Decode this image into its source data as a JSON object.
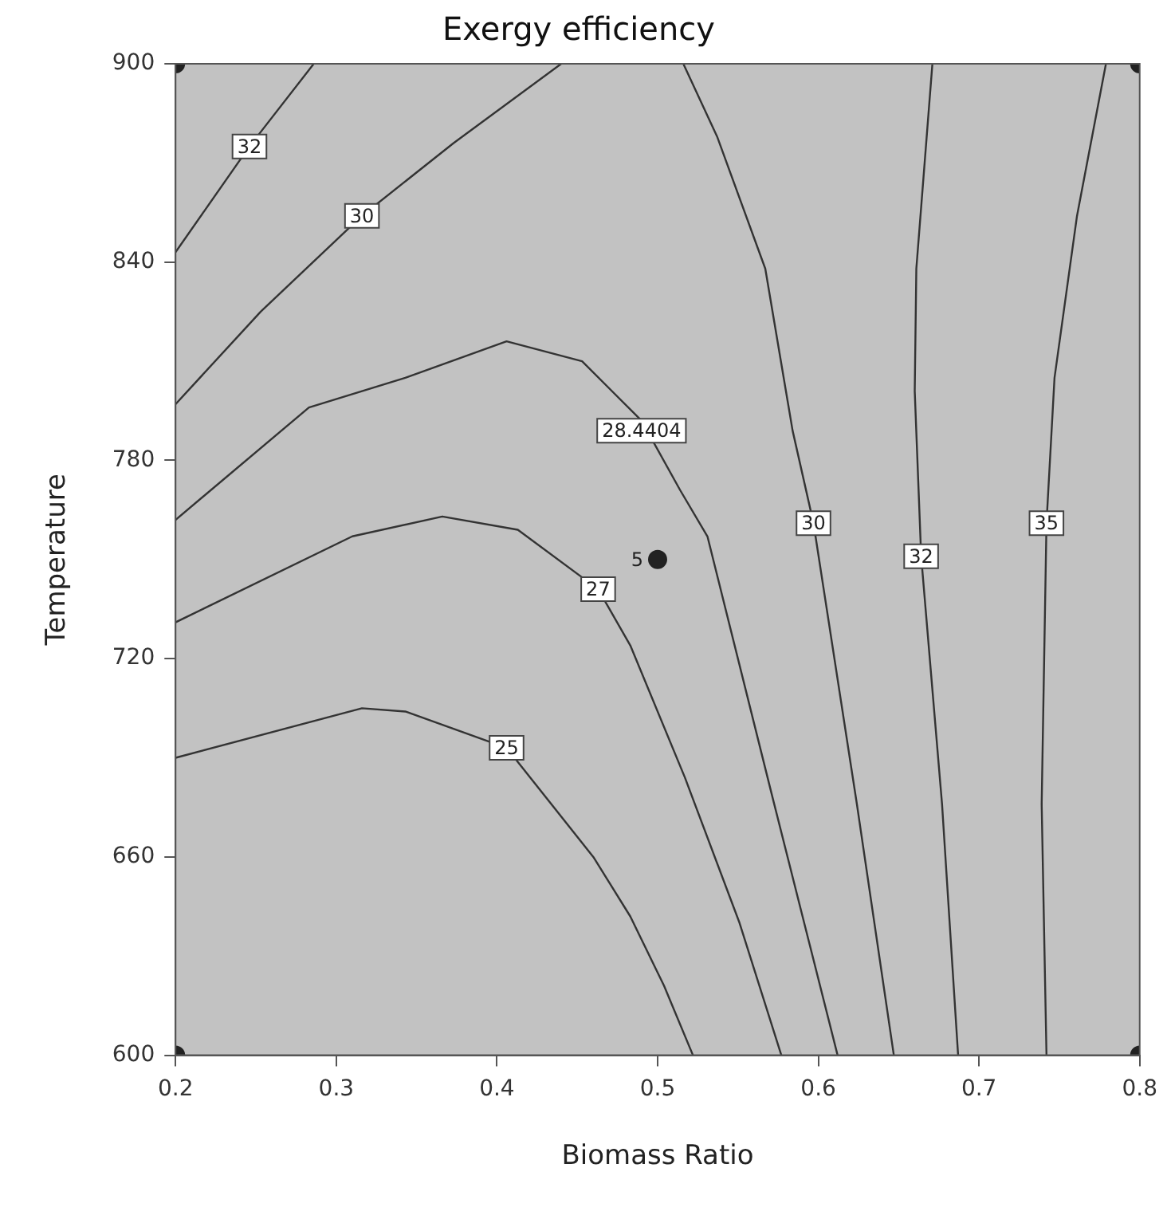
{
  "chart_data": {
    "type": "line",
    "title": "Exergy efficiency",
    "xlabel": "Biomass Ratio",
    "ylabel": "Temperature",
    "xlim": [
      0.2,
      0.8
    ],
    "xticks": [
      0.2,
      0.3,
      0.4,
      0.5,
      0.6,
      0.7,
      0.8
    ],
    "ylim": [
      600,
      900
    ],
    "yticks": [
      600,
      660,
      720,
      780,
      840,
      900
    ],
    "grid": false,
    "legend": false,
    "marker": "none",
    "line_style": "solid",
    "series": [
      {
        "color": "#333333",
        "x": [
          0.2,
          0.246,
          0.286
        ],
        "values": [
          843,
          875,
          900
        ]
      },
      {
        "color": "#333333",
        "x": [
          0.2,
          0.253,
          0.316,
          0.373,
          0.44
        ],
        "values": [
          797,
          825,
          854,
          876,
          900
        ]
      },
      {
        "color": "#333333",
        "x": [
          0.2,
          0.283,
          0.343,
          0.406,
          0.453,
          0.49,
          0.514,
          0.531,
          0.571,
          0.612
        ],
        "values": [
          762,
          796,
          805,
          816,
          810,
          792,
          771,
          757,
          679,
          600
        ]
      },
      {
        "color": "#333333",
        "x": [
          0.2,
          0.31,
          0.366,
          0.413,
          0.463,
          0.483,
          0.517,
          0.551,
          0.577
        ],
        "values": [
          731,
          757,
          763,
          759,
          741,
          724,
          684,
          640,
          600
        ]
      },
      {
        "color": "#333333",
        "x": [
          0.2,
          0.316,
          0.343,
          0.406,
          0.46,
          0.483,
          0.504,
          0.522
        ],
        "values": [
          690,
          705,
          704,
          693,
          660,
          642,
          621,
          600
        ]
      },
      {
        "color": "#333333",
        "x": [
          0.516,
          0.537,
          0.567,
          0.584,
          0.597,
          0.624,
          0.647
        ],
        "values": [
          900,
          878,
          838,
          789,
          761,
          676,
          600
        ]
      },
      {
        "color": "#333333",
        "x": [
          0.671,
          0.661,
          0.66,
          0.664,
          0.677,
          0.687
        ],
        "values": [
          900,
          838,
          801,
          751,
          676,
          600
        ]
      },
      {
        "color": "#333333",
        "x": [
          0.779,
          0.761,
          0.747,
          0.742,
          0.739,
          0.742
        ],
        "values": [
          900,
          854,
          805,
          761,
          676,
          600
        ]
      },
      {
        "type": "scatter",
        "marker": "circle",
        "color": "#222222",
        "x": [
          0.2,
          0.2,
          0.8,
          0.8,
          0.5
        ],
        "values": [
          600,
          900,
          900,
          600,
          750
        ]
      }
    ],
    "annotations": [
      {
        "text": "32",
        "x": 0.246,
        "y": 875
      },
      {
        "text": "30",
        "x": 0.316,
        "y": 854
      },
      {
        "text": "28.4404",
        "x": 0.49,
        "y": 789
      },
      {
        "text": "27",
        "x": 0.463,
        "y": 741
      },
      {
        "text": "25",
        "x": 0.406,
        "y": 693
      },
      {
        "text": "30",
        "x": 0.597,
        "y": 761
      },
      {
        "text": "32",
        "x": 0.664,
        "y": 751
      },
      {
        "text": "35",
        "x": 0.742,
        "y": 761
      },
      {
        "text": "5",
        "x": 0.5,
        "y": 750
      }
    ]
  }
}
